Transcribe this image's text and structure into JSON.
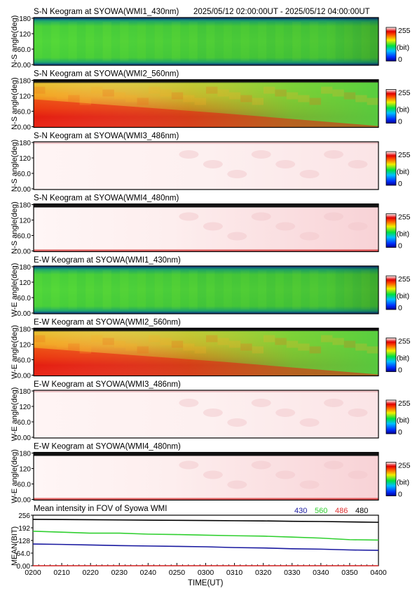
{
  "header": {
    "time_range": "2025/05/12 02:00:00UT - 2025/05/12 04:00:00UT"
  },
  "panels": [
    {
      "title": "S-N Keogram at SYOWA(WMI1_430nm)",
      "ylabel": "N-S angle(deg)",
      "ticks": [
        "180",
        "120",
        "60.0",
        "0.00"
      ],
      "style": "green"
    },
    {
      "title": "S-N Keogram at SYOWA(WMI2_560nm)",
      "ylabel": "N-S angle(deg)",
      "ticks": [
        "180",
        "120",
        "60.0",
        "0.00"
      ],
      "style": "aurora"
    },
    {
      "title": "S-N Keogram at SYOWA(WMI3_486nm)",
      "ylabel": "N-S angle(deg)",
      "ticks": [
        "180",
        "120",
        "60.0",
        "0.00"
      ],
      "style": "pale"
    },
    {
      "title": "S-N Keogram at SYOWA(WMI4_480nm)",
      "ylabel": "N-S angle(deg)",
      "ticks": [
        "180",
        "120",
        "60.0",
        "0.00"
      ],
      "style": "pale-strong"
    },
    {
      "title": "E-W Keogram at SYOWA(WMI1_430nm)",
      "ylabel": "W-E angle(deg)",
      "ticks": [
        "180",
        "120",
        "60.0",
        "0.00"
      ],
      "style": "green"
    },
    {
      "title": "E-W Keogram at SYOWA(WMI2_560nm)",
      "ylabel": "W-E angle(deg)",
      "ticks": [
        "180",
        "120",
        "60.0",
        "0.00"
      ],
      "style": "aurora"
    },
    {
      "title": "E-W Keogram at SYOWA(WMI3_486nm)",
      "ylabel": "W-E angle(deg)",
      "ticks": [
        "180",
        "120",
        "60.0",
        "0.00"
      ],
      "style": "pale"
    },
    {
      "title": "E-W Keogram at SYOWA(WMI4_480nm)",
      "ylabel": "W-E angle(deg)",
      "ticks": [
        "180",
        "120",
        "60.0",
        "0.00"
      ],
      "style": "pale-strong"
    }
  ],
  "colorbar": {
    "max_label": "255",
    "unit_label": "(bit)",
    "min_label": "0"
  },
  "chart_data": {
    "type": "line",
    "title": "Mean intensity in FOV of Syowa WMI",
    "xlabel": "TIME(UT)",
    "ylabel": "MEAN(BIT)",
    "x_ticks": [
      "0200",
      "0210",
      "0220",
      "0230",
      "0240",
      "0250",
      "0300",
      "0310",
      "0320",
      "0330",
      "0340",
      "0350",
      "0400"
    ],
    "y_ticks": [
      "256",
      "192",
      "128",
      "64.0",
      "0.00"
    ],
    "ylim": [
      0,
      256
    ],
    "x_minutes_ut": [
      120,
      130,
      140,
      150,
      160,
      170,
      180,
      190,
      200,
      210,
      220,
      230,
      240
    ],
    "series": [
      {
        "name": "430",
        "color": "#1a1aa0",
        "values": [
          110,
          108,
          105,
          102,
          100,
          98,
          96,
          92,
          90,
          86,
          84,
          80,
          78
        ]
      },
      {
        "name": "560",
        "color": "#30d030",
        "values": [
          175,
          170,
          165,
          165,
          160,
          158,
          155,
          152,
          150,
          145,
          140,
          132,
          130
        ]
      },
      {
        "name": "486",
        "color": "#e03030",
        "values": [
          0,
          0,
          0,
          0,
          0,
          0,
          0,
          0,
          0,
          0,
          0,
          0,
          0
        ]
      },
      {
        "name": "480",
        "color": "#000000",
        "values": [
          235,
          234,
          233,
          232,
          231,
          230,
          229,
          228,
          227,
          225,
          224,
          222,
          220
        ]
      }
    ]
  }
}
